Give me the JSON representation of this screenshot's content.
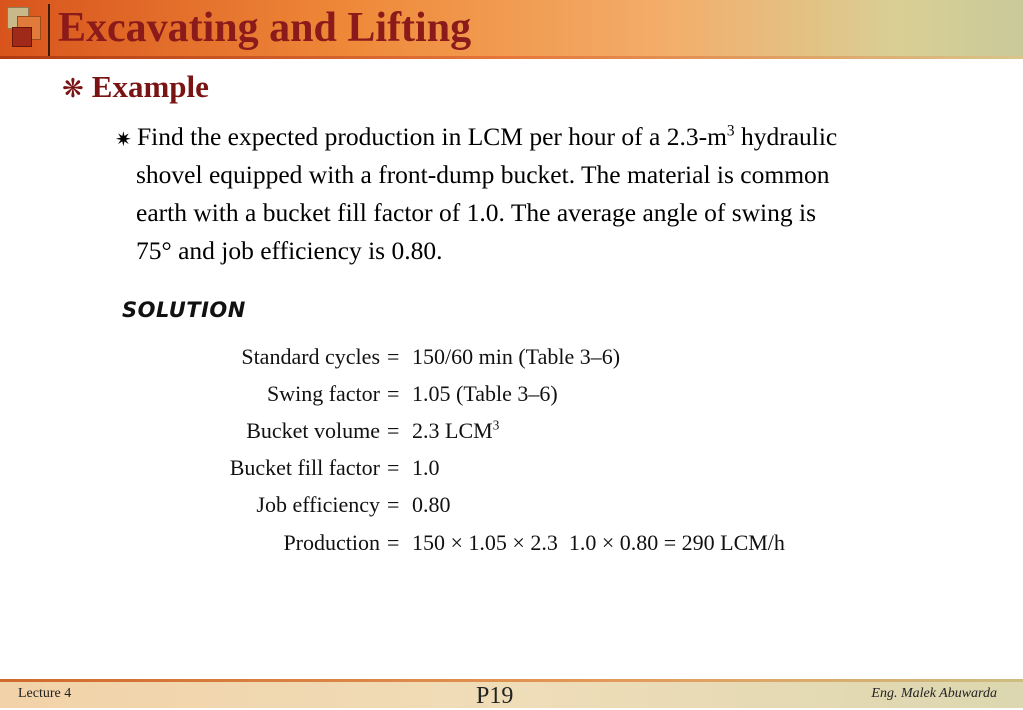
{
  "slide": {
    "title": "Excavating and Lifting",
    "bullet_l1": {
      "glyph": "❋",
      "text": "Example"
    },
    "bullet_l2": {
      "glyph": "✷",
      "lines": [
        {
          "pre": "Find the expected production in LCM per hour of a 2.3-m",
          "sup": "3",
          "post": " hydraulic"
        },
        {
          "text": "shovel equipped with a front-dump bucket. The material is common"
        },
        {
          "text": "earth with a bucket fill factor of 1.0. The average angle of swing is"
        },
        {
          "text": "75° and job efficiency is 0.80."
        }
      ]
    },
    "solution": {
      "heading": "SOLUTION",
      "rows": [
        {
          "label": "Standard cycles",
          "eq": "=",
          "value": "150/60 min (Table 3–6)"
        },
        {
          "label": "Swing factor",
          "eq": "=",
          "value": "1.05 (Table 3–6)"
        },
        {
          "label": "Bucket volume",
          "eq": "=",
          "value": "2.3 LCM",
          "sup": "3"
        },
        {
          "label": "Bucket fill factor",
          "eq": "=",
          "value": "1.0"
        },
        {
          "label": "Job efficiency",
          "eq": "=",
          "value": "0.80"
        },
        {
          "label": "Production",
          "eq": "=",
          "value": "150 × 1.05 × 2.3  1.0 × 0.80 = 290 LCM/h"
        }
      ]
    }
  },
  "footer": {
    "left": "Lecture 4",
    "center": "P19",
    "right": "Eng. Malek Abuwarda"
  }
}
